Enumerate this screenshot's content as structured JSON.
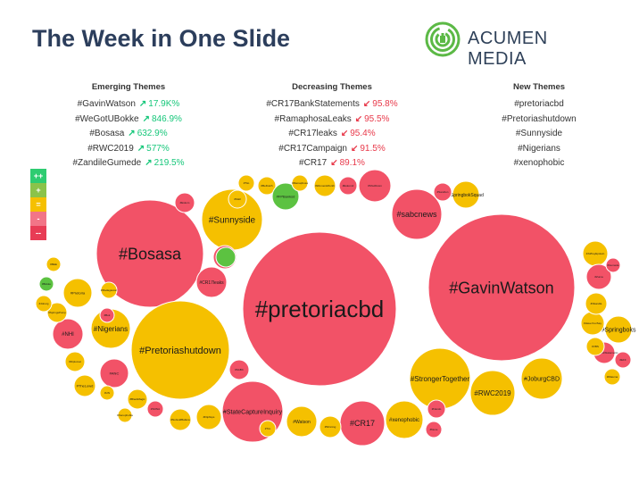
{
  "title": "The Week in One Slide",
  "logo": {
    "text": "ACUMEN MEDIA",
    "icon": "maze-circle-icon"
  },
  "colors": {
    "increase_strong": "#2ecc71",
    "increase": "#8bc34a",
    "neutral": "#f5c000",
    "decrease": "#f27587",
    "decrease_strong": "#e83c55"
  },
  "emerging": {
    "heading": "Emerging Themes",
    "items": [
      {
        "tag": "#GavinWatson",
        "pct": "17.9K%"
      },
      {
        "tag": "#WeGotUBokke",
        "pct": "846.9%"
      },
      {
        "tag": "#Bosasa",
        "pct": "632.9%"
      },
      {
        "tag": "#RWC2019",
        "pct": "577%"
      },
      {
        "tag": "#ZandileGumede",
        "pct": "219.5%"
      }
    ]
  },
  "decreasing": {
    "heading": "Decreasing Themes",
    "items": [
      {
        "tag": "#CR17BankStatements",
        "pct": "95.8%"
      },
      {
        "tag": "#RamaphosaLeaks",
        "pct": "95.5%"
      },
      {
        "tag": "#CR17leaks",
        "pct": "95.4%"
      },
      {
        "tag": "#CR17Campaign",
        "pct": "91.5%"
      },
      {
        "tag": "#CR17",
        "pct": "89.1%"
      }
    ]
  },
  "new_themes": {
    "heading": "New Themes",
    "items": [
      "#pretoriacbd",
      "#Pretoriashutdown",
      "#Sunnyside",
      "#Nigerians",
      "#xenophobic"
    ]
  },
  "legend": [
    "++",
    "+",
    "=",
    "-",
    "--"
  ],
  "bubbles": [
    {
      "label": "#pretoriacbd",
      "cat": "red"
    },
    {
      "label": "#GavinWatson",
      "cat": "red"
    },
    {
      "label": "#Bosasa",
      "cat": "red"
    },
    {
      "label": "#Pretoriashutdown",
      "cat": "yellow"
    },
    {
      "label": "#Sunnyside",
      "cat": "yellow"
    },
    {
      "label": "#sabcnews",
      "cat": "red"
    },
    {
      "label": "#StrongerTogether",
      "cat": "yellow"
    },
    {
      "label": "#StateCaptureInquiry",
      "cat": "red"
    },
    {
      "label": "#CR17",
      "cat": "red"
    },
    {
      "label": "#RWC2019",
      "cat": "yellow"
    },
    {
      "label": "#JoburgCBD",
      "cat": "yellow"
    },
    {
      "label": "#Nigerians",
      "cat": "yellow"
    },
    {
      "label": "#xenophobic",
      "cat": "yellow"
    },
    {
      "label": "#NHI",
      "cat": "red"
    },
    {
      "label": "#CR17leaks",
      "cat": "red"
    },
    {
      "label": "#Watson",
      "cat": "yellow"
    },
    {
      "label": "#Springboks",
      "cat": "yellow"
    },
    {
      "label": "#ANC",
      "cat": "red"
    },
    {
      "label": "#SpringbokSquad",
      "cat": "yellow"
    },
    {
      "label": "#Pretoria",
      "cat": "yellow"
    },
    {
      "label": "#JoffreyEpstein",
      "cat": "yellow"
    },
    {
      "label": "#TheLowd",
      "cat": "yellow"
    },
    {
      "label": "#Zuma",
      "cat": "red"
    },
    {
      "label": "#HaveYourSay",
      "cat": "yellow"
    },
    {
      "label": "#SpringsPump",
      "cat": "yellow"
    },
    {
      "label": "#Flipflops",
      "cat": "yellow"
    },
    {
      "label": "#NoGoldBafana",
      "cat": "yellow"
    },
    {
      "label": "#Eskom",
      "cat": "red"
    },
    {
      "label": "#SABC",
      "cat": "red"
    },
    {
      "label": "#BlackMagic",
      "cat": "yellow"
    },
    {
      "label": "#BeDutch",
      "cat": "yellow"
    },
    {
      "label": "#FPBanksd",
      "cat": "green"
    },
    {
      "label": "#Bokke",
      "cat": "green"
    },
    {
      "label": "#CR17Campaign",
      "cat": "red"
    },
    {
      "label": "#ShutDown",
      "cat": "red"
    },
    {
      "label": "#WomensMonth",
      "cat": "yellow"
    },
    {
      "label": "#Eskom2",
      "cat": "red"
    },
    {
      "label": "#Sandton",
      "cat": "red"
    },
    {
      "label": "#Diplomat",
      "cat": "yellow"
    },
    {
      "label": "#Nkandla",
      "cat": "yellow"
    },
    {
      "label": "#Nando",
      "cat": "red"
    },
    {
      "label": "#Winning",
      "cat": "yellow"
    },
    {
      "label": "#CR17BankStatements",
      "cat": "red"
    },
    {
      "label": "#Mall",
      "cat": "yellow"
    },
    {
      "label": "#Ramaphosa",
      "cat": "yellow"
    },
    {
      "label": "#Madagascar",
      "cat": "yellow"
    },
    {
      "label": "#BEE",
      "cat": "yellow"
    },
    {
      "label": "#Joburg",
      "cat": "yellow"
    },
    {
      "label": "#SONA",
      "cat": "red"
    },
    {
      "label": "#Nene",
      "cat": "red"
    },
    {
      "label": "#VBS",
      "cat": "yellow"
    },
    {
      "label": "#EFF",
      "cat": "red"
    },
    {
      "label": "#Malema",
      "cat": "yellow"
    },
    {
      "label": "#Tito",
      "cat": "yellow"
    },
    {
      "label": "#Tim",
      "cat": "yellow"
    },
    {
      "label": "#Bok",
      "cat": "red"
    },
    {
      "label": "#UN",
      "cat": "yellow"
    },
    {
      "label": "#Xenophobia",
      "cat": "yellow"
    },
    {
      "label": "#Gumede",
      "cat": "red"
    },
    {
      "label": "#green",
      "cat": "green"
    }
  ]
}
